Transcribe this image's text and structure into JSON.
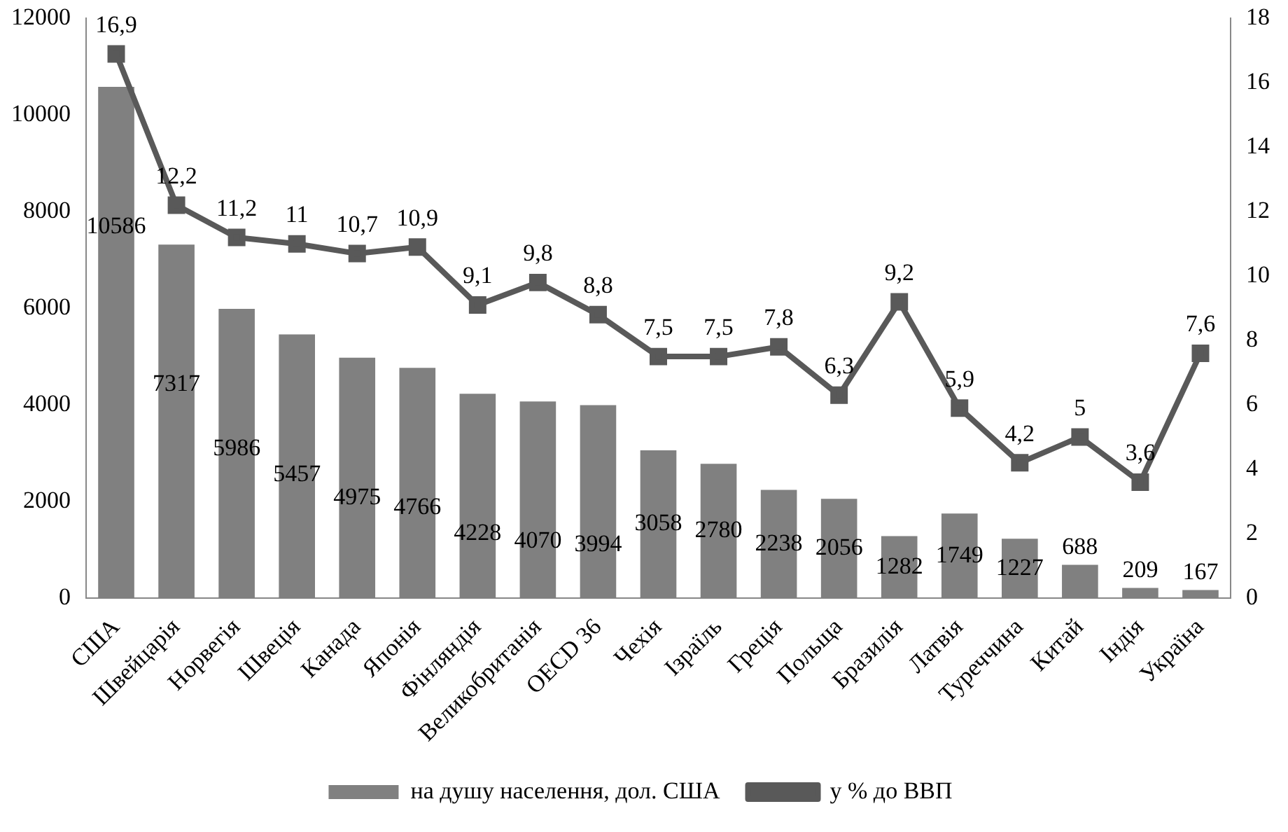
{
  "chart_data": {
    "type": "bar",
    "categories": [
      "США",
      "Швейцарія",
      "Норвегія",
      "Швеція",
      "Канада",
      "Японія",
      "Фінляндія",
      "Великобританія",
      "OECD 36",
      "Чехія",
      "Ізраїль",
      "Греція",
      "Польща",
      "Бразилія",
      "Латвія",
      "Туреччина",
      "Китай",
      "Індія",
      "Україна"
    ],
    "series": [
      {
        "name": "на душу населення, дол. США",
        "color": "#808080",
        "values": [
          10586,
          7317,
          5986,
          5457,
          4975,
          4766,
          4228,
          4070,
          3994,
          3058,
          2780,
          2238,
          2056,
          1282,
          1749,
          1227,
          688,
          209,
          167
        ],
        "value_labels": [
          "10586",
          "7317",
          "5986",
          "5457",
          "4975",
          "4766",
          "4228",
          "4070",
          "3994",
          "3058",
          "2780",
          "2238",
          "2056",
          "1282",
          "1749",
          "1227",
          "688",
          "209",
          "167"
        ]
      },
      {
        "name": "у % до ВВП",
        "type": "line",
        "axis": "y2",
        "color": "#595959",
        "values": [
          16.9,
          12.2,
          11.2,
          11,
          10.7,
          10.9,
          9.1,
          9.8,
          8.8,
          7.5,
          7.5,
          7.8,
          6.3,
          9.2,
          5.9,
          4.2,
          5,
          3.6,
          7.6
        ],
        "value_labels": [
          "16,9",
          "12,2",
          "11,2",
          "11",
          "10,7",
          "10,9",
          "9,1",
          "9,8",
          "8,8",
          "7,5",
          "7,5",
          "7,8",
          "6,3",
          "9,2",
          "5,9",
          "4,2",
          "5",
          "3,6",
          "7,6"
        ]
      }
    ],
    "ylim": [
      0,
      12000
    ],
    "yticks": [
      0,
      2000,
      4000,
      6000,
      8000,
      10000,
      12000
    ],
    "y2lim": [
      0,
      18
    ],
    "y2ticks": [
      0,
      2,
      4,
      6,
      8,
      10,
      12,
      14,
      16,
      18
    ],
    "grid": false,
    "legend": "bottom",
    "marker": "square",
    "line_style": "solid"
  }
}
